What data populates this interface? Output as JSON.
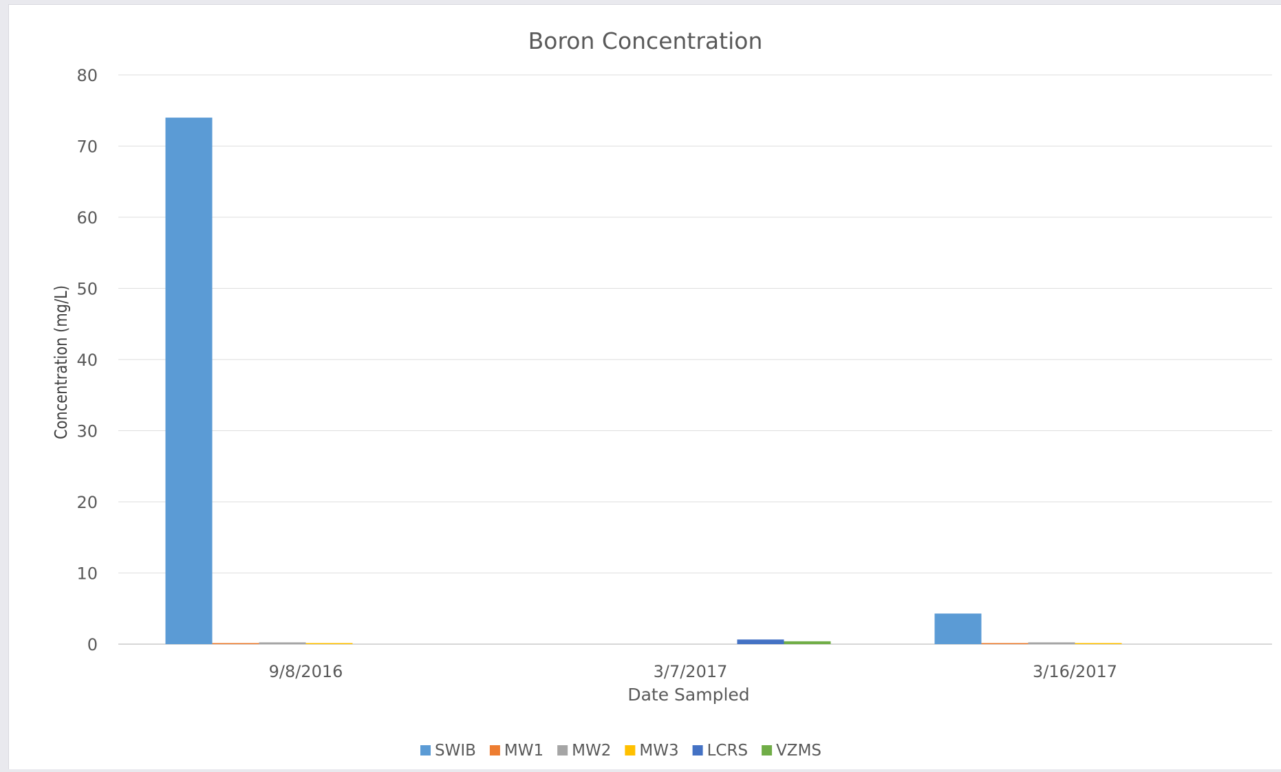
{
  "chart_data": {
    "type": "bar",
    "title": "Boron Concentration",
    "xlabel": "Date Sampled",
    "ylabel": "Concentration (mg/L)",
    "ylim": [
      0,
      80
    ],
    "yticks": [
      "0",
      "10",
      "20",
      "30",
      "40",
      "50",
      "60",
      "70",
      "80"
    ],
    "grid": true,
    "legend_position": "bottom",
    "categories": [
      "9/8/2016",
      "3/7/2017",
      "3/16/2017"
    ],
    "series": [
      {
        "name": "SWIB",
        "color": "#5B9BD5",
        "values": [
          74,
          0,
          4.3
        ]
      },
      {
        "name": "MW1",
        "color": "#ED7D31",
        "values": [
          0.15,
          0,
          0.15
        ]
      },
      {
        "name": "MW2",
        "color": "#A5A5A5",
        "values": [
          0.25,
          0,
          0.25
        ]
      },
      {
        "name": "MW3",
        "color": "#FFC000",
        "values": [
          0.15,
          0,
          0.15
        ]
      },
      {
        "name": "LCRS",
        "color": "#4472C4",
        "values": [
          0,
          0.65,
          0
        ]
      },
      {
        "name": "VZMS",
        "color": "#70AD47",
        "values": [
          0,
          0.4,
          0
        ]
      }
    ]
  }
}
